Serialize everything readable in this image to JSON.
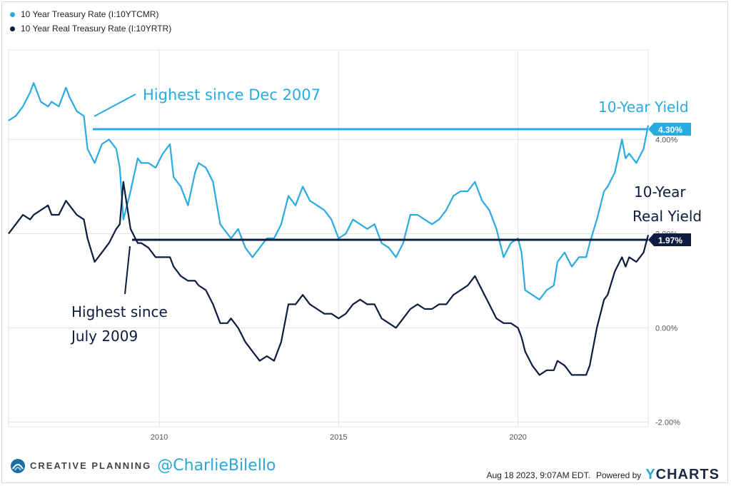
{
  "legend": [
    {
      "label": "10 Year Treasury Rate (I:10YTCMR)",
      "color": "#29abe2"
    },
    {
      "label": "10 Year Real Treasury Rate (I:10YRTR)",
      "color": "#0d1b3e"
    }
  ],
  "annotations": {
    "nominal_high": "Highest since Dec 2007",
    "nominal_label": "10-Year Yield",
    "real_label_line1": "10-Year",
    "real_label_line2": "Real Yield",
    "real_high_line1": "Highest since",
    "real_high_line2": "July 2009"
  },
  "badges": {
    "nominal": "4.30%",
    "real": "1.97%"
  },
  "footer": {
    "brand": "CREATIVE PLANNING",
    "handle": "@CharlieBilello",
    "timestamp": "Aug 18 2023, 9:07AM EDT.",
    "powered_by": "Powered by",
    "ycharts_y": "Y",
    "ycharts_rest": "CHARTS"
  },
  "colors": {
    "nominal": "#29abe2",
    "real": "#0d1b3e",
    "grid": "#e3e3e3"
  },
  "chart_data": {
    "type": "line",
    "title": "",
    "xlabel": "",
    "ylabel": "",
    "x_ticks": [
      "2010",
      "2015",
      "2020"
    ],
    "x_tick_values": [
      2010,
      2015,
      2020
    ],
    "y_ticks": [
      "4.00%",
      "2.00%",
      "0.00%",
      "-2.00%"
    ],
    "y_tick_values": [
      4,
      2,
      0,
      -2
    ],
    "xlim": [
      2005.8,
      2023.63
    ],
    "ylim": [
      -2.1,
      5.9
    ],
    "grid": true,
    "legend_position": "top-left",
    "series": [
      {
        "name": "10 Year Treasury Rate (I:10YTCMR)",
        "x": [
          2005.8,
          2006.0,
          2006.2,
          2006.4,
          2006.5,
          2006.7,
          2006.9,
          2007.0,
          2007.2,
          2007.4,
          2007.5,
          2007.7,
          2007.9,
          2008.0,
          2008.2,
          2008.4,
          2008.6,
          2008.8,
          2008.9,
          2009.0,
          2009.2,
          2009.4,
          2009.5,
          2009.7,
          2009.9,
          2010.1,
          2010.3,
          2010.4,
          2010.6,
          2010.8,
          2011.0,
          2011.1,
          2011.3,
          2011.5,
          2011.7,
          2011.9,
          2012.0,
          2012.2,
          2012.4,
          2012.6,
          2012.8,
          2013.0,
          2013.2,
          2013.4,
          2013.6,
          2013.8,
          2014.0,
          2014.2,
          2014.4,
          2014.6,
          2014.8,
          2015.0,
          2015.2,
          2015.4,
          2015.6,
          2015.8,
          2016.0,
          2016.2,
          2016.4,
          2016.6,
          2016.8,
          2017.0,
          2017.2,
          2017.4,
          2017.6,
          2017.8,
          2018.0,
          2018.2,
          2018.4,
          2018.6,
          2018.8,
          2019.0,
          2019.2,
          2019.4,
          2019.6,
          2019.8,
          2020.0,
          2020.1,
          2020.2,
          2020.4,
          2020.6,
          2020.8,
          2021.0,
          2021.1,
          2021.3,
          2021.5,
          2021.7,
          2021.9,
          2022.0,
          2022.2,
          2022.4,
          2022.5,
          2022.7,
          2022.9,
          2023.0,
          2023.1,
          2023.3,
          2023.5,
          2023.63
        ],
        "values": [
          4.4,
          4.5,
          4.7,
          5.0,
          5.2,
          4.8,
          4.7,
          4.8,
          4.7,
          5.1,
          4.9,
          4.6,
          4.5,
          3.8,
          3.5,
          3.9,
          4.0,
          3.8,
          3.4,
          2.3,
          2.9,
          3.6,
          3.5,
          3.5,
          3.4,
          3.7,
          3.9,
          3.2,
          3.0,
          2.6,
          3.3,
          3.5,
          3.4,
          3.1,
          2.2,
          2.0,
          1.9,
          2.1,
          1.7,
          1.5,
          1.7,
          1.9,
          1.9,
          2.2,
          2.8,
          2.6,
          3.0,
          2.7,
          2.6,
          2.5,
          2.3,
          1.9,
          2.0,
          2.3,
          2.2,
          2.1,
          2.2,
          1.8,
          1.7,
          1.5,
          1.8,
          2.4,
          2.4,
          2.3,
          2.2,
          2.3,
          2.5,
          2.8,
          2.9,
          2.9,
          3.1,
          2.7,
          2.5,
          2.1,
          1.5,
          1.8,
          1.9,
          1.6,
          0.8,
          0.7,
          0.6,
          0.8,
          0.9,
          1.4,
          1.6,
          1.3,
          1.5,
          1.5,
          1.8,
          2.3,
          2.9,
          3.0,
          3.3,
          4.0,
          3.6,
          3.7,
          3.5,
          3.8,
          4.3
        ]
      },
      {
        "name": "10 Year Real Treasury Rate (I:10YRTR)",
        "x": [
          2005.8,
          2006.0,
          2006.2,
          2006.4,
          2006.5,
          2006.7,
          2006.9,
          2007.0,
          2007.2,
          2007.4,
          2007.5,
          2007.7,
          2007.9,
          2008.0,
          2008.2,
          2008.4,
          2008.6,
          2008.8,
          2008.9,
          2009.0,
          2009.2,
          2009.4,
          2009.5,
          2009.7,
          2009.9,
          2010.1,
          2010.3,
          2010.4,
          2010.6,
          2010.8,
          2011.0,
          2011.1,
          2011.3,
          2011.5,
          2011.7,
          2011.9,
          2012.0,
          2012.2,
          2012.4,
          2012.6,
          2012.8,
          2013.0,
          2013.2,
          2013.4,
          2013.6,
          2013.8,
          2014.0,
          2014.2,
          2014.4,
          2014.6,
          2014.8,
          2015.0,
          2015.2,
          2015.4,
          2015.6,
          2015.8,
          2016.0,
          2016.2,
          2016.4,
          2016.6,
          2016.8,
          2017.0,
          2017.2,
          2017.4,
          2017.6,
          2017.8,
          2018.0,
          2018.2,
          2018.4,
          2018.6,
          2018.8,
          2019.0,
          2019.2,
          2019.4,
          2019.6,
          2019.8,
          2020.0,
          2020.1,
          2020.2,
          2020.4,
          2020.6,
          2020.8,
          2021.0,
          2021.1,
          2021.3,
          2021.5,
          2021.7,
          2021.9,
          2022.0,
          2022.2,
          2022.4,
          2022.5,
          2022.7,
          2022.9,
          2023.0,
          2023.1,
          2023.3,
          2023.5,
          2023.63
        ],
        "values": [
          2.0,
          2.2,
          2.4,
          2.3,
          2.4,
          2.5,
          2.6,
          2.4,
          2.4,
          2.7,
          2.6,
          2.4,
          2.3,
          1.9,
          1.4,
          1.6,
          1.8,
          2.1,
          2.2,
          3.1,
          2.1,
          1.8,
          1.8,
          1.7,
          1.5,
          1.5,
          1.5,
          1.3,
          1.1,
          1.0,
          1.0,
          0.9,
          0.8,
          0.5,
          0.1,
          0.1,
          0.2,
          0.0,
          -0.3,
          -0.5,
          -0.7,
          -0.6,
          -0.7,
          -0.3,
          0.5,
          0.5,
          0.7,
          0.5,
          0.4,
          0.3,
          0.3,
          0.2,
          0.3,
          0.5,
          0.6,
          0.5,
          0.5,
          0.2,
          0.1,
          0.0,
          0.2,
          0.4,
          0.5,
          0.4,
          0.4,
          0.5,
          0.5,
          0.7,
          0.8,
          0.9,
          1.1,
          0.8,
          0.5,
          0.2,
          0.1,
          0.1,
          0.0,
          -0.2,
          -0.5,
          -0.8,
          -1.0,
          -0.9,
          -0.9,
          -0.7,
          -0.8,
          -1.0,
          -1.0,
          -1.0,
          -0.8,
          0.0,
          0.6,
          0.7,
          1.2,
          1.5,
          1.3,
          1.5,
          1.4,
          1.6,
          1.97
        ]
      }
    ]
  }
}
